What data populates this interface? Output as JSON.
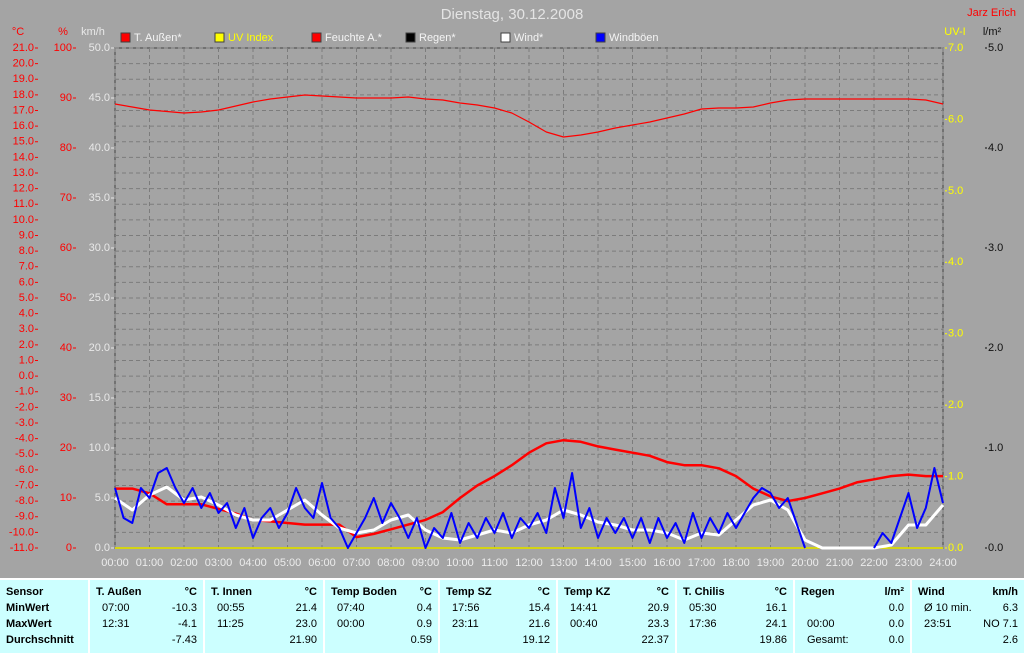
{
  "chart_data": {
    "type": "line",
    "title": "Dienstag, 30.12.2008",
    "author": "Jarz Erich",
    "grid": true,
    "xlim": [
      0,
      24
    ],
    "xticks": [
      {
        "value": 0,
        "label": "00:00"
      },
      {
        "value": 1,
        "label": "01:00"
      },
      {
        "value": 2,
        "label": "02:00"
      },
      {
        "value": 3,
        "label": "03:00"
      },
      {
        "value": 4,
        "label": "04:00"
      },
      {
        "value": 5,
        "label": "05:00"
      },
      {
        "value": 6,
        "label": "06:00"
      },
      {
        "value": 7,
        "label": "07:00"
      },
      {
        "value": 8,
        "label": "08:00"
      },
      {
        "value": 9,
        "label": "09:00"
      },
      {
        "value": 10,
        "label": "10:00"
      },
      {
        "value": 11,
        "label": "11:00"
      },
      {
        "value": 12,
        "label": "12:00"
      },
      {
        "value": 13,
        "label": "13:00"
      },
      {
        "value": 14,
        "label": "14:00"
      },
      {
        "value": 15,
        "label": "15:00"
      },
      {
        "value": 16,
        "label": "16:00"
      },
      {
        "value": 17,
        "label": "17:00"
      },
      {
        "value": 18,
        "label": "18:00"
      },
      {
        "value": 19,
        "label": "19:00"
      },
      {
        "value": 20,
        "label": "20:00"
      },
      {
        "value": 21,
        "label": "21:00"
      },
      {
        "value": 22,
        "label": "22:00"
      },
      {
        "value": 23,
        "label": "23:00"
      },
      {
        "value": 24,
        "label": "24:00"
      }
    ],
    "x": [
      0,
      0.5,
      1,
      1.5,
      2,
      2.5,
      3,
      3.5,
      4,
      4.5,
      5,
      5.5,
      6,
      6.5,
      7,
      7.5,
      8,
      8.5,
      9,
      9.5,
      10,
      10.5,
      11,
      11.5,
      12,
      12.5,
      13,
      13.5,
      14,
      14.5,
      15,
      15.5,
      16,
      16.5,
      17,
      17.5,
      18,
      18.5,
      19,
      19.5,
      20,
      20.5,
      21,
      21.5,
      22,
      22.5,
      23,
      23.5,
      24
    ],
    "axes": {
      "temp": {
        "label": "°C",
        "color": "#ff0000",
        "lim": [
          -11,
          21
        ],
        "ticks": [
          {
            "value": -11,
            "label": "-11.0"
          },
          {
            "value": -10,
            "label": "-10.0"
          },
          {
            "value": -9,
            "label": "-9.0"
          },
          {
            "value": -8,
            "label": "-8.0"
          },
          {
            "value": -7,
            "label": "-7.0"
          },
          {
            "value": -6,
            "label": "-6.0"
          },
          {
            "value": -5,
            "label": "-5.0"
          },
          {
            "value": -4,
            "label": "-4.0"
          },
          {
            "value": -3,
            "label": "-3.0"
          },
          {
            "value": -2,
            "label": "-2.0"
          },
          {
            "value": -1,
            "label": "-1.0"
          },
          {
            "value": 0,
            "label": "0.0"
          },
          {
            "value": 1,
            "label": "1.0"
          },
          {
            "value": 2,
            "label": "2.0"
          },
          {
            "value": 3,
            "label": "3.0"
          },
          {
            "value": 4,
            "label": "4.0"
          },
          {
            "value": 5,
            "label": "5.0"
          },
          {
            "value": 6,
            "label": "6.0"
          },
          {
            "value": 7,
            "label": "7.0"
          },
          {
            "value": 8,
            "label": "8.0"
          },
          {
            "value": 9,
            "label": "9.0"
          },
          {
            "value": 10,
            "label": "10.0"
          },
          {
            "value": 11,
            "label": "11.0"
          },
          {
            "value": 12,
            "label": "12.0"
          },
          {
            "value": 13,
            "label": "13.0"
          },
          {
            "value": 14,
            "label": "14.0"
          },
          {
            "value": 15,
            "label": "15.0"
          },
          {
            "value": 16,
            "label": "16.0"
          },
          {
            "value": 17,
            "label": "17.0"
          },
          {
            "value": 18,
            "label": "18.0"
          },
          {
            "value": 19,
            "label": "19.0"
          },
          {
            "value": 20,
            "label": "20.0"
          },
          {
            "value": 21,
            "label": "21.0"
          }
        ]
      },
      "hum": {
        "label": "%",
        "color": "#ff0000",
        "lim": [
          0,
          100
        ],
        "ticks": [
          0,
          10,
          20,
          30,
          40,
          50,
          60,
          70,
          80,
          90,
          100
        ]
      },
      "wind": {
        "label": "km/h",
        "color": "#e8e8e8",
        "lim": [
          0,
          50
        ],
        "ticks": [
          {
            "value": 0,
            "label": "0.0"
          },
          {
            "value": 5,
            "label": "5.0"
          },
          {
            "value": 10,
            "label": "10.0"
          },
          {
            "value": 15,
            "label": "15.0"
          },
          {
            "value": 20,
            "label": "20.0"
          },
          {
            "value": 25,
            "label": "25.0"
          },
          {
            "value": 30,
            "label": "30.0"
          },
          {
            "value": 35,
            "label": "35.0"
          },
          {
            "value": 40,
            "label": "40.0"
          },
          {
            "value": 45,
            "label": "45.0"
          },
          {
            "value": 50,
            "label": "50.0"
          }
        ]
      },
      "uv": {
        "label": "UV-I",
        "color": "#ffff00",
        "lim": [
          0,
          7
        ],
        "ticks": [
          {
            "value": 0,
            "label": "0.0"
          },
          {
            "value": 1,
            "label": "1.0"
          },
          {
            "value": 2,
            "label": "2.0"
          },
          {
            "value": 3,
            "label": "3.0"
          },
          {
            "value": 4,
            "label": "4.0"
          },
          {
            "value": 5,
            "label": "5.0"
          },
          {
            "value": 6,
            "label": "6.0"
          },
          {
            "value": 7,
            "label": "7.0"
          }
        ]
      },
      "rain": {
        "label": "l/m²",
        "color": "#101010",
        "lim": [
          0,
          5
        ],
        "ticks": [
          {
            "value": 0,
            "label": "0.0"
          },
          {
            "value": 1,
            "label": "1.0"
          },
          {
            "value": 2,
            "label": "2.0"
          },
          {
            "value": 3,
            "label": "3.0"
          },
          {
            "value": 4,
            "label": "4.0"
          },
          {
            "value": 5,
            "label": "5.0"
          }
        ]
      }
    },
    "series": [
      {
        "name": "T. Außen*",
        "color": "#ff0000",
        "axis": "temp",
        "values": [
          -7.2,
          -7.2,
          -7.5,
          -8.2,
          -8.2,
          -8.2,
          -8.5,
          -8.8,
          -9.2,
          -9.3,
          -9.4,
          -9.5,
          -9.5,
          -9.5,
          -10.3,
          -10.1,
          -9.8,
          -9.5,
          -9.2,
          -8.7,
          -7.8,
          -7.0,
          -6.4,
          -5.7,
          -4.9,
          -4.3,
          -4.1,
          -4.2,
          -4.5,
          -4.7,
          -4.9,
          -5.1,
          -5.5,
          -5.7,
          -5.7,
          -5.9,
          -6.4,
          -7.2,
          -7.7,
          -8.0,
          -7.8,
          -7.5,
          -7.2,
          -6.8,
          -6.6,
          -6.4,
          -6.3,
          -6.4,
          -6.4
        ]
      },
      {
        "name": "UV Index",
        "color": "#ffff00",
        "axis": "uv",
        "x": [
          0,
          24
        ],
        "values": [
          0,
          0
        ]
      },
      {
        "name": "Feuchte A.*",
        "color": "#ff0000",
        "axis": "hum",
        "values": [
          88.8,
          88.2,
          87.6,
          87.3,
          87,
          87.2,
          87.6,
          88.4,
          89.2,
          89.8,
          90.2,
          90.6,
          90.4,
          90.2,
          90,
          90,
          90,
          90.2,
          89.8,
          89.6,
          89,
          88.6,
          88,
          87,
          85.2,
          83.2,
          82.2,
          82.6,
          83.2,
          84,
          84.6,
          85.2,
          86,
          86.8,
          87.8,
          88,
          88,
          88.2,
          89,
          89.6,
          89.8,
          89.8,
          89.8,
          89.8,
          89.8,
          89.8,
          89.8,
          89.6,
          88.8
        ]
      },
      {
        "name": "Regen*",
        "color": "#000000",
        "axis": "rain",
        "x": [
          0,
          24
        ],
        "values": [
          0,
          0
        ]
      },
      {
        "name": "Wind*",
        "color": "#ffffff",
        "axis": "wind",
        "values": [
          5,
          3.8,
          5.3,
          6.1,
          4.8,
          5.1,
          4.3,
          3.3,
          2.8,
          2.8,
          3.8,
          4.8,
          3.3,
          2,
          1.5,
          1.8,
          2.8,
          3.3,
          1.8,
          1,
          0.8,
          1.3,
          1.8,
          1.5,
          2.3,
          2.8,
          3.8,
          3.3,
          2.6,
          2.3,
          1.8,
          1.8,
          1.5,
          0.8,
          1.5,
          1.3,
          2.8,
          4.3,
          4.8,
          3.8,
          0.8,
          0,
          0,
          0,
          0,
          0.3,
          2.3,
          2.3,
          4.3
        ]
      },
      {
        "name": "Windböen",
        "color": "#0000ff",
        "axis": "wind",
        "x": [
          0,
          0.25,
          0.5,
          0.75,
          1,
          1.25,
          1.5,
          1.75,
          2,
          2.25,
          2.5,
          2.75,
          3,
          3.25,
          3.5,
          3.75,
          4,
          4.25,
          4.5,
          4.75,
          5,
          5.25,
          5.5,
          5.75,
          6,
          6.25,
          6.5,
          6.75,
          7,
          7.25,
          7.5,
          7.75,
          8,
          8.25,
          8.5,
          8.75,
          9,
          9.25,
          9.5,
          9.75,
          10,
          10.25,
          10.5,
          10.75,
          11,
          11.25,
          11.5,
          11.75,
          12,
          12.25,
          12.5,
          12.75,
          13,
          13.25,
          13.5,
          13.75,
          14,
          14.25,
          14.5,
          14.75,
          15,
          15.25,
          15.5,
          15.75,
          16,
          16.25,
          16.5,
          16.75,
          17,
          17.25,
          17.5,
          17.75,
          18,
          18.25,
          18.5,
          18.75,
          19,
          19.25,
          19.5,
          19.75,
          20,
          20.25,
          20.5,
          20.75,
          21,
          21.25,
          21.5,
          21.75,
          22,
          22.25,
          22.5,
          22.75,
          23,
          23.25,
          23.5,
          23.75,
          24
        ],
        "values": [
          6,
          3,
          2.5,
          6,
          5,
          7.5,
          8,
          6,
          4.5,
          6,
          4,
          5.5,
          3.5,
          4.5,
          2,
          4,
          1,
          3,
          4,
          2,
          3.5,
          6,
          4,
          3,
          6.5,
          3,
          2,
          0,
          1.5,
          3,
          5,
          2.5,
          4.5,
          3,
          1,
          3,
          0,
          2,
          1,
          3.5,
          0.5,
          2.5,
          1,
          3,
          1.5,
          3.5,
          1,
          3,
          2,
          3.5,
          1.5,
          6,
          3,
          7.5,
          2,
          4,
          1,
          3,
          1.5,
          3,
          1,
          3,
          0.5,
          3,
          1,
          2.5,
          0.5,
          3.5,
          1,
          3,
          1.5,
          3.5,
          2,
          3.5,
          5,
          6,
          5.5,
          4,
          5,
          2.5,
          0,
          null,
          null,
          null,
          null,
          null,
          null,
          null,
          0,
          1.5,
          0.5,
          3,
          5.5,
          2,
          4,
          8,
          4.5
        ]
      }
    ]
  },
  "table": {
    "row_labels": [
      "Sensor",
      "MinWert",
      "MaxWert",
      "Durchschnitt"
    ],
    "columns": [
      {
        "name": "T. Außen",
        "unit": "°C",
        "rows": [
          {
            "time": "07:00",
            "value": "-10.3"
          },
          {
            "time": "12:31",
            "value": "-4.1"
          },
          {
            "value": "-7.43"
          }
        ]
      },
      {
        "name": "T. Innen",
        "unit": "°C",
        "rows": [
          {
            "time": "00:55",
            "value": "21.4"
          },
          {
            "time": "11:25",
            "value": "23.0"
          },
          {
            "value": "21.90"
          }
        ]
      },
      {
        "name": "Temp Boden",
        "unit": "°C",
        "rows": [
          {
            "time": "07:40",
            "value": "0.4"
          },
          {
            "time": "00:00",
            "value": "0.9"
          },
          {
            "value": "0.59"
          }
        ]
      },
      {
        "name": "Temp SZ",
        "unit": "°C",
        "rows": [
          {
            "time": "17:56",
            "value": "15.4"
          },
          {
            "time": "23:11",
            "value": "21.6"
          },
          {
            "value": "19.12"
          }
        ]
      },
      {
        "name": "Temp KZ",
        "unit": "°C",
        "rows": [
          {
            "time": "14:41",
            "value": "20.9"
          },
          {
            "time": "00:40",
            "value": "23.3"
          },
          {
            "value": "22.37"
          }
        ]
      },
      {
        "name": "T. Chilis",
        "unit": "°C",
        "rows": [
          {
            "time": "05:30",
            "value": "16.1"
          },
          {
            "time": "17:36",
            "value": "24.1"
          },
          {
            "value": "19.86"
          }
        ]
      },
      {
        "name": "Regen",
        "unit": "l/m²",
        "rows": [
          {
            "value": "0.0"
          },
          {
            "time": "00:00",
            "value": "0.0"
          },
          {
            "time": "Gesamt:",
            "value": "0.0"
          }
        ]
      },
      {
        "name": "Wind",
        "unit": "km/h",
        "rows": [
          {
            "time": "Ø 10 min.",
            "value": "6.3"
          },
          {
            "time": "23:51",
            "value": "NO 7.1"
          },
          {
            "value": "2.6"
          }
        ]
      }
    ]
  }
}
